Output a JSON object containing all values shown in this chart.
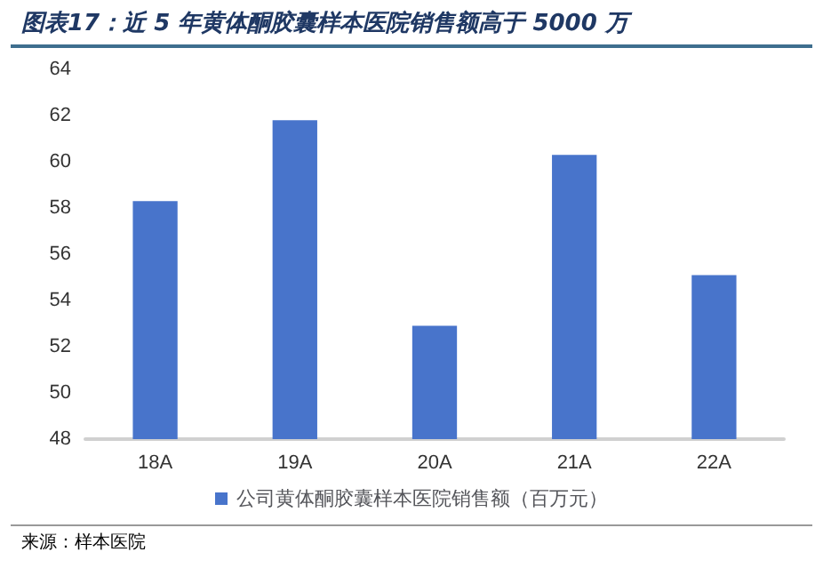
{
  "chart_data": {
    "type": "bar",
    "title": "图表17：近 5 年黄体酮胶囊样本医院销售额高于 5000 万",
    "categories": [
      "18A",
      "19A",
      "20A",
      "21A",
      "22A"
    ],
    "series": [
      {
        "name": "公司黄体酮胶囊样本医院销售额（百万元）",
        "color": "#4874cb",
        "values": [
          58.3,
          61.8,
          52.9,
          60.3,
          55.1
        ]
      }
    ],
    "ylim": [
      48,
      64
    ],
    "yticks": [
      48,
      50,
      52,
      54,
      56,
      58,
      60,
      62,
      64
    ],
    "grid": false,
    "legend": "bottom",
    "annotations": [
      "来源：样本医院"
    ]
  }
}
